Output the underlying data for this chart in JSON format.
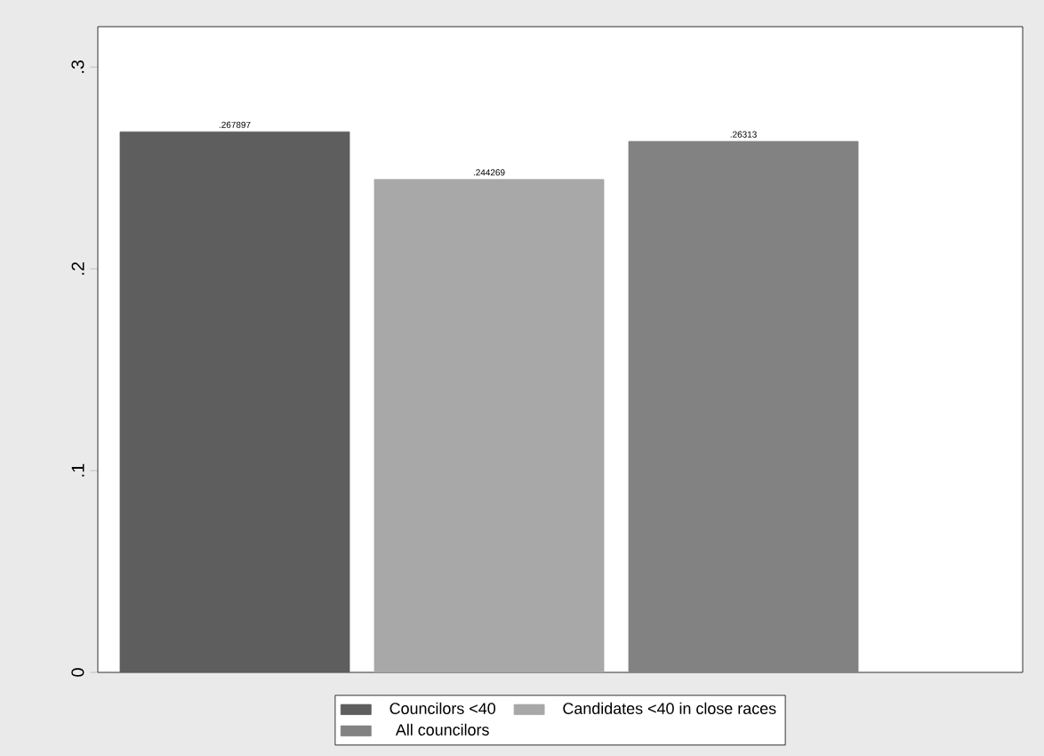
{
  "chart_data": {
    "type": "bar",
    "categories": [
      null
    ],
    "series": [
      {
        "name": "Councilors <40",
        "color": "#5e5e5e",
        "values": [
          0.267897
        ],
        "value_labels": [
          ".267897"
        ]
      },
      {
        "name": "Candidates <40 in close races",
        "color": "#a8a8a8",
        "values": [
          0.244269
        ],
        "value_labels": [
          ".244269"
        ]
      },
      {
        "name": "All councilors",
        "color": "#828282",
        "values": [
          0.26313
        ],
        "value_labels": [
          ".26313"
        ]
      }
    ],
    "ylim": [
      0,
      0.32
    ],
    "yticks": [
      {
        "value": 0,
        "label": "0"
      },
      {
        "value": 0.1,
        "label": ".1"
      },
      {
        "value": 0.2,
        "label": ".2"
      },
      {
        "value": 0.3,
        "label": ".3"
      }
    ],
    "grid": false,
    "legend": "bottom"
  }
}
